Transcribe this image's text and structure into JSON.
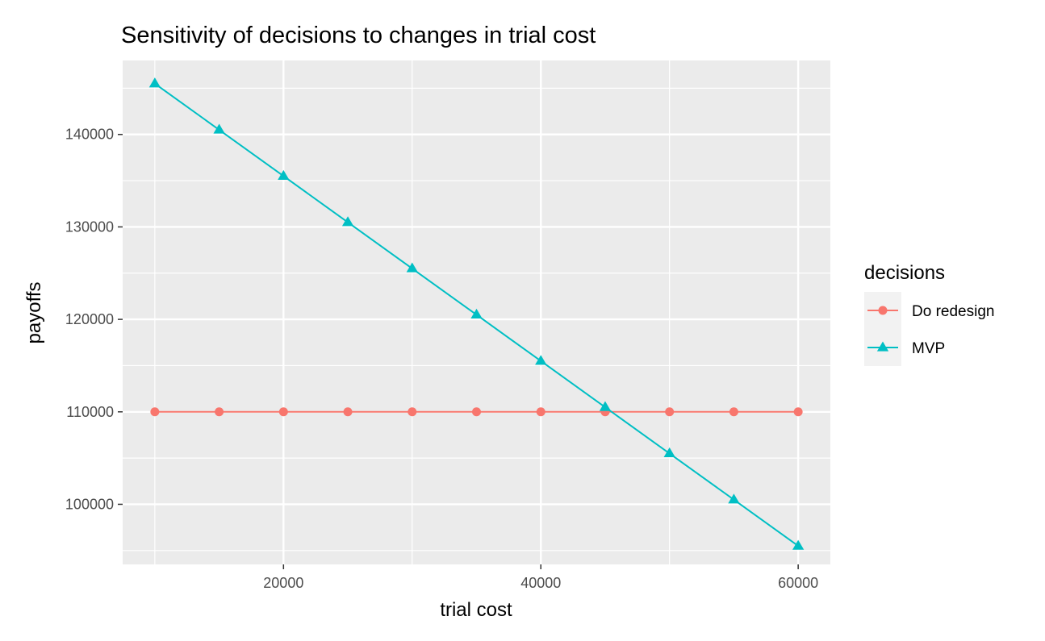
{
  "chart_data": {
    "type": "line",
    "title": "Sensitivity of decisions to changes in trial cost",
    "xlabel": "trial cost",
    "ylabel": "payoffs",
    "xlim": [
      7500,
      62500
    ],
    "ylim": [
      93500,
      148000
    ],
    "x_ticks": [
      20000,
      40000,
      60000
    ],
    "x_tick_labels": [
      "20000",
      "40000",
      "60000"
    ],
    "y_ticks": [
      100000,
      110000,
      120000,
      130000,
      140000
    ],
    "y_tick_labels": [
      "100000",
      "110000",
      "120000",
      "130000",
      "140000"
    ],
    "grid": true,
    "legend_title": "decisions",
    "legend_position": "right",
    "x": [
      10000,
      15000,
      20000,
      25000,
      30000,
      35000,
      40000,
      45000,
      50000,
      55000,
      60000
    ],
    "series": [
      {
        "name": "Do redesign",
        "color": "#F8766D",
        "marker": "circle",
        "values": [
          110000,
          110000,
          110000,
          110000,
          110000,
          110000,
          110000,
          110000,
          110000,
          110000,
          110000
        ]
      },
      {
        "name": "MVP",
        "color": "#00BFC4",
        "marker": "triangle",
        "values": [
          145500,
          140500,
          135500,
          130500,
          125500,
          120500,
          115500,
          110500,
          105500,
          100500,
          95500
        ]
      }
    ]
  }
}
